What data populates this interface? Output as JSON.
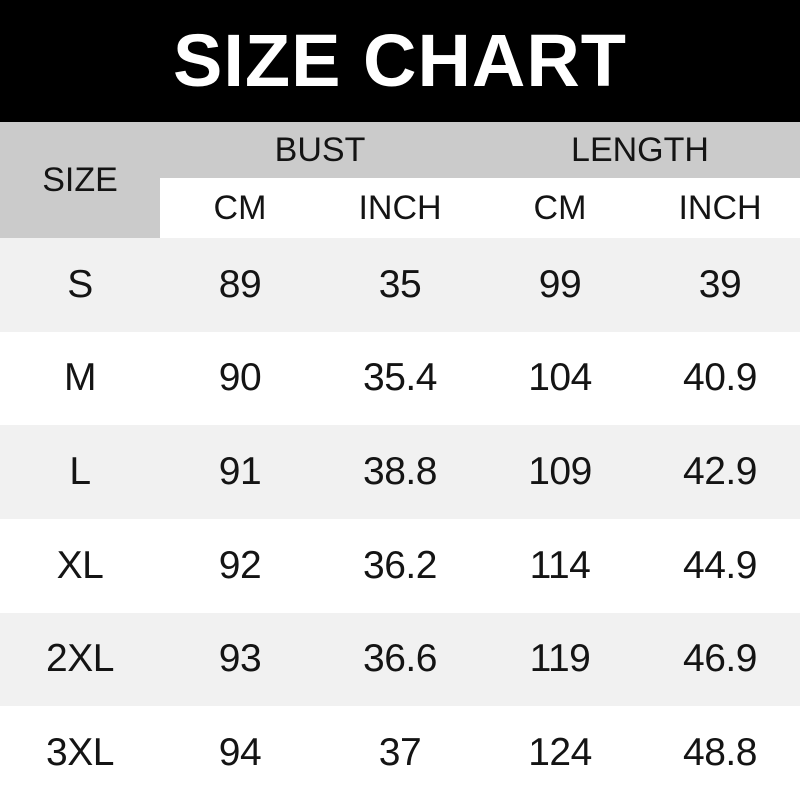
{
  "banner": {
    "title": "SIZE CHART"
  },
  "table": {
    "corner_label": "SIZE",
    "group_headers": [
      "BUST",
      "LENGTH"
    ],
    "unit_headers": [
      "CM",
      "INCH",
      "CM",
      "INCH"
    ],
    "rows": [
      {
        "size": "S",
        "cells": [
          "89",
          "35",
          "99",
          "39"
        ]
      },
      {
        "size": "M",
        "cells": [
          "90",
          "35.4",
          "104",
          "40.9"
        ]
      },
      {
        "size": "L",
        "cells": [
          "91",
          "38.8",
          "109",
          "42.9"
        ]
      },
      {
        "size": "XL",
        "cells": [
          "92",
          "36.2",
          "114",
          "44.9"
        ]
      },
      {
        "size": "2XL",
        "cells": [
          "93",
          "36.6",
          "119",
          "46.9"
        ]
      },
      {
        "size": "3XL",
        "cells": [
          "94",
          "37",
          "124",
          "48.8"
        ]
      }
    ]
  },
  "colors": {
    "banner_bg": "#000000",
    "header_bg": "#cbcbcb",
    "row_alt_bg": "#f1f1f1",
    "row_bg": "#ffffff",
    "text": "#141414",
    "title_text": "#ffffff"
  },
  "chart_data": {
    "type": "table",
    "title": "SIZE CHART",
    "columns": [
      "SIZE",
      "BUST CM",
      "BUST INCH",
      "LENGTH CM",
      "LENGTH INCH"
    ],
    "rows": [
      [
        "S",
        89,
        35,
        99,
        39
      ],
      [
        "M",
        90,
        35.4,
        104,
        40.9
      ],
      [
        "L",
        91,
        38.8,
        109,
        42.9
      ],
      [
        "XL",
        92,
        36.2,
        114,
        44.9
      ],
      [
        "2XL",
        93,
        36.6,
        119,
        46.9
      ],
      [
        "3XL",
        94,
        37,
        124,
        48.8
      ]
    ]
  }
}
